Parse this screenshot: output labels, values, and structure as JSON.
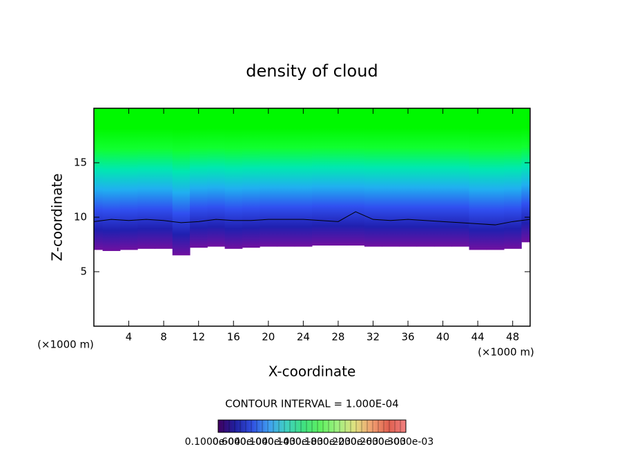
{
  "chart_data": {
    "type": "contour",
    "title": "density of cloud",
    "x_label": "X-coordinate",
    "y_label": "Z-coordinate",
    "x_unit": "(×1000 m)",
    "y_unit": "(×1000 m)",
    "contour_interval": "CONTOUR INTERVAL = 1.000E-04",
    "xlim": [
      0,
      50
    ],
    "ylim": [
      0,
      20
    ],
    "xticks": [
      4,
      8,
      12,
      16,
      20,
      24,
      28,
      32,
      36,
      40,
      44,
      48
    ],
    "yticks": [
      5,
      10,
      15
    ],
    "x": [
      0,
      2,
      4,
      6,
      8,
      10,
      12,
      14,
      16,
      18,
      20,
      22,
      24,
      26,
      28,
      30,
      32,
      34,
      36,
      38,
      40,
      42,
      44,
      46,
      48,
      50
    ],
    "cloud_base": [
      7.0,
      6.9,
      7.0,
      7.1,
      7.1,
      6.5,
      7.2,
      7.3,
      7.1,
      7.2,
      7.3,
      7.3,
      7.3,
      7.4,
      7.4,
      7.4,
      7.3,
      7.3,
      7.3,
      7.3,
      7.3,
      7.3,
      7.0,
      7.0,
      7.1,
      7.7
    ],
    "contour_level": [
      9.6,
      9.8,
      9.7,
      9.8,
      9.7,
      9.5,
      9.6,
      9.8,
      9.7,
      9.7,
      9.8,
      9.8,
      9.8,
      9.7,
      9.6,
      10.5,
      9.8,
      9.7,
      9.8,
      9.7,
      9.6,
      9.5,
      9.4,
      9.3,
      9.6,
      9.8
    ],
    "colormap": [
      "#00f800",
      "#00f800",
      "#10ff30",
      "#00e8b0",
      "#20b0f0",
      "#3050f0",
      "#2020b0",
      "#7010a0"
    ],
    "colorbar_colors": [
      "#400060",
      "#2020a0",
      "#3050e0",
      "#40a0f0",
      "#40d0c0",
      "#40e080",
      "#60f060",
      "#a0f080",
      "#e0e080",
      "#f0a070",
      "#e06050",
      "#f08080"
    ],
    "colorbar_labels": [
      "0.1000e-04",
      "0.6000e-04",
      "0.1000e-03",
      "0.1400e-03",
      "0.1800e-03",
      "0.2200e-03",
      "0.2600e-03",
      "0.3000e-03"
    ]
  }
}
